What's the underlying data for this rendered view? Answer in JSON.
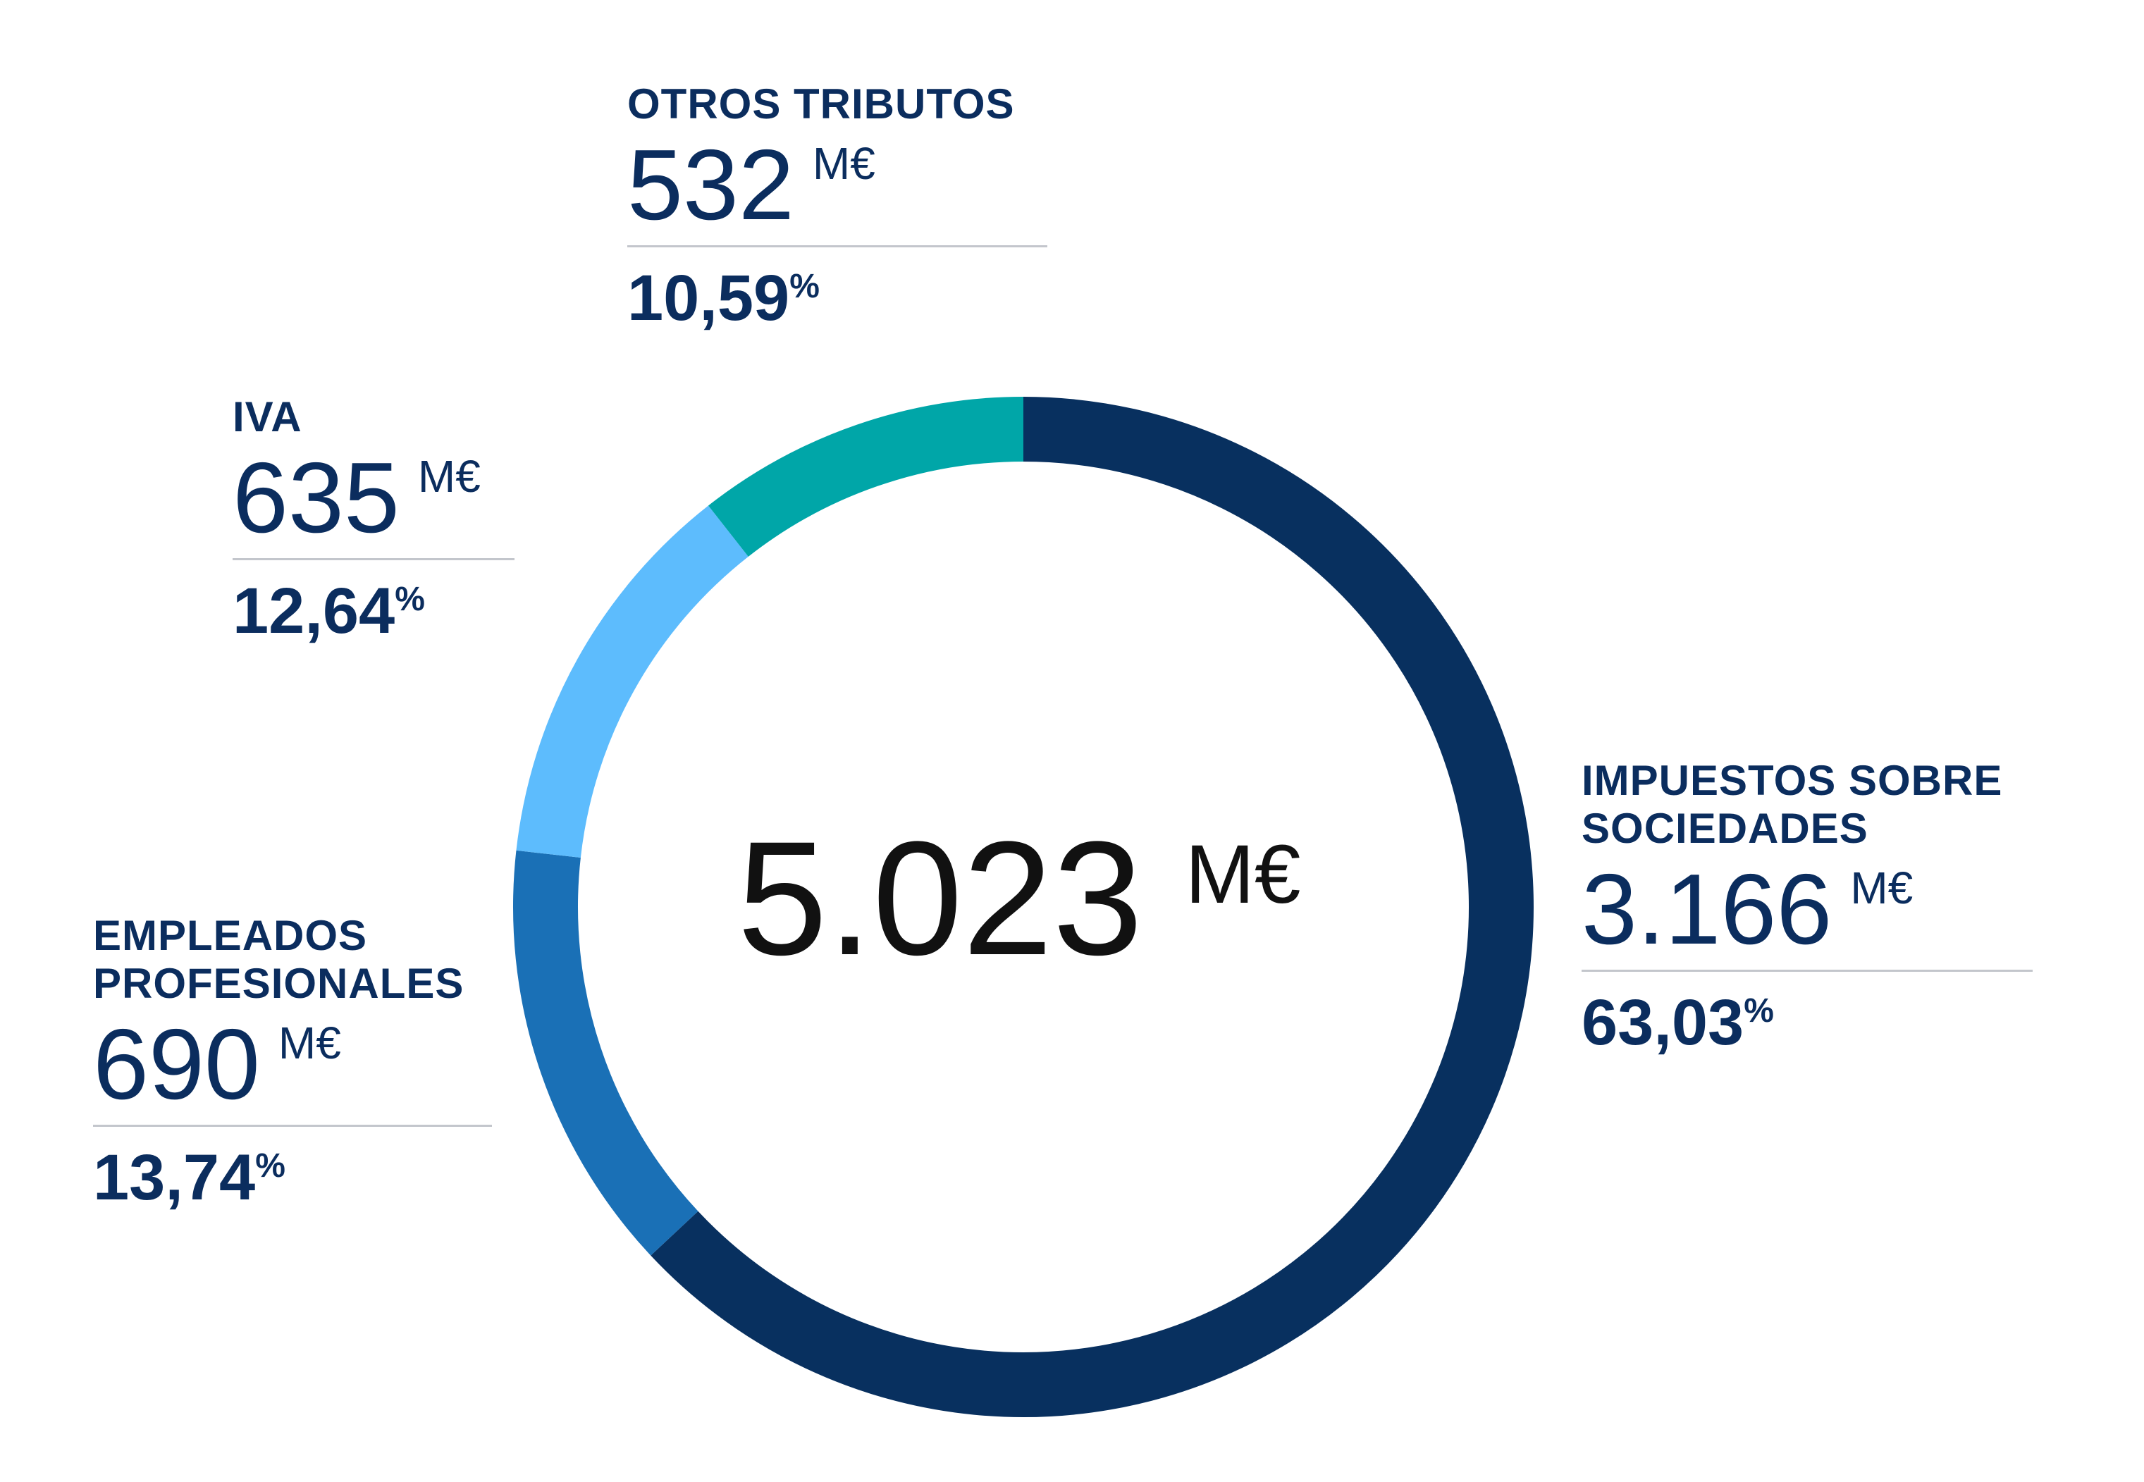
{
  "chart_data": {
    "type": "pie",
    "total": {
      "value": "5.023",
      "unit": "M€"
    },
    "segments": [
      {
        "name": "IMPUESTOS SOBRE\nSOCIEDADES",
        "value": 3166,
        "value_label": "3.166",
        "unit": "M€",
        "percent": 63.03,
        "percent_label": "63,03",
        "color": "#08305f"
      },
      {
        "name": "EMPLEADOS\nPROFESIONALES",
        "value": 690,
        "value_label": "690",
        "unit": "M€",
        "percent": 13.74,
        "percent_label": "13,74",
        "color": "#1a70b6"
      },
      {
        "name": "IVA",
        "value": 635,
        "value_label": "635",
        "unit": "M€",
        "percent": 12.64,
        "percent_label": "12,64",
        "color": "#5dbcfd"
      },
      {
        "name": "OTROS TRIBUTOS",
        "value": 532,
        "value_label": "532",
        "unit": "M€",
        "percent": 10.59,
        "percent_label": "10,59",
        "color": "#00a6a8"
      }
    ]
  }
}
